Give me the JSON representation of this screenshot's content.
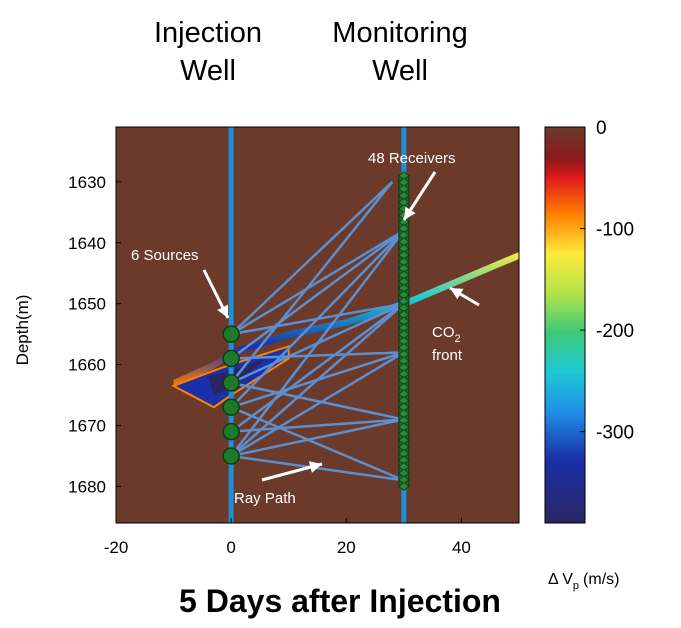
{
  "header": {
    "injection_line1": "Injection",
    "injection_line2": "Well",
    "monitoring_line1": "Monitoring",
    "monitoring_line2": "Well"
  },
  "annotations": {
    "receivers": "48 Receivers",
    "sources": "6 Sources",
    "co2_main": "CO",
    "co2_sub": "2",
    "co2_front": "front",
    "ray_path": "Ray Path"
  },
  "footer_title": "5 Days after Injection",
  "colorbar": {
    "label_delta": "Δ V",
    "label_sub": "p",
    "label_unit": "(m/s)",
    "ticks": [
      0,
      -100,
      -200,
      -300
    ],
    "range": [
      -390,
      0
    ]
  },
  "colors": {
    "background": "#6b3a2a",
    "well": "#1f8fd6",
    "ray": "#5b8fd0",
    "source": "#1e7a2a",
    "receiver": "#1e6a2a"
  },
  "chart_data": {
    "type": "line",
    "xlim": [
      -20,
      50
    ],
    "ylim": [
      1686,
      1621
    ],
    "xticks": [
      -20,
      0,
      20,
      40
    ],
    "yticks": [
      1630,
      1640,
      1650,
      1660,
      1670,
      1680
    ],
    "xlabel": "",
    "ylabel": "Depth(m)",
    "injection_well_x": 0,
    "monitoring_well_x": 30,
    "sources": [
      {
        "x": 0,
        "y": 1655
      },
      {
        "x": 0,
        "y": 1659
      },
      {
        "x": 0,
        "y": 1663
      },
      {
        "x": 0,
        "y": 1667
      },
      {
        "x": 0,
        "y": 1671
      },
      {
        "x": 0,
        "y": 1675
      }
    ],
    "receiver_top": 1629,
    "receiver_bottom": 1680,
    "receiver_count": 48,
    "ray_paths": [
      [
        [
          0,
          1655
        ],
        [
          28,
          1630
        ]
      ],
      [
        [
          0,
          1655
        ],
        [
          30,
          1638
        ]
      ],
      [
        [
          0,
          1655
        ],
        [
          30,
          1650
        ]
      ],
      [
        [
          0,
          1659
        ],
        [
          30,
          1638
        ]
      ],
      [
        [
          0,
          1659
        ],
        [
          30,
          1658
        ]
      ],
      [
        [
          0,
          1663
        ],
        [
          28,
          1630
        ]
      ],
      [
        [
          0,
          1663
        ],
        [
          30,
          1650
        ]
      ],
      [
        [
          0,
          1663
        ],
        [
          30,
          1669
        ]
      ],
      [
        [
          0,
          1667
        ],
        [
          30,
          1638
        ]
      ],
      [
        [
          0,
          1667
        ],
        [
          30,
          1658
        ]
      ],
      [
        [
          0,
          1667
        ],
        [
          30,
          1679
        ]
      ],
      [
        [
          0,
          1671
        ],
        [
          30,
          1650
        ]
      ],
      [
        [
          0,
          1671
        ],
        [
          30,
          1669
        ]
      ],
      [
        [
          0,
          1675
        ],
        [
          30,
          1638
        ]
      ],
      [
        [
          0,
          1675
        ],
        [
          30,
          1650
        ]
      ],
      [
        [
          0,
          1675
        ],
        [
          30,
          1658
        ]
      ],
      [
        [
          0,
          1675
        ],
        [
          30,
          1669
        ]
      ],
      [
        [
          0,
          1675
        ],
        [
          30,
          1679
        ]
      ]
    ],
    "co2_front": [
      [
        -10,
        1663
      ],
      [
        -3,
        1660
      ],
      [
        0,
        1658
      ],
      [
        10,
        1655
      ],
      [
        20,
        1653
      ],
      [
        30,
        1650
      ],
      [
        40,
        1646
      ],
      [
        50,
        1642
      ]
    ]
  }
}
